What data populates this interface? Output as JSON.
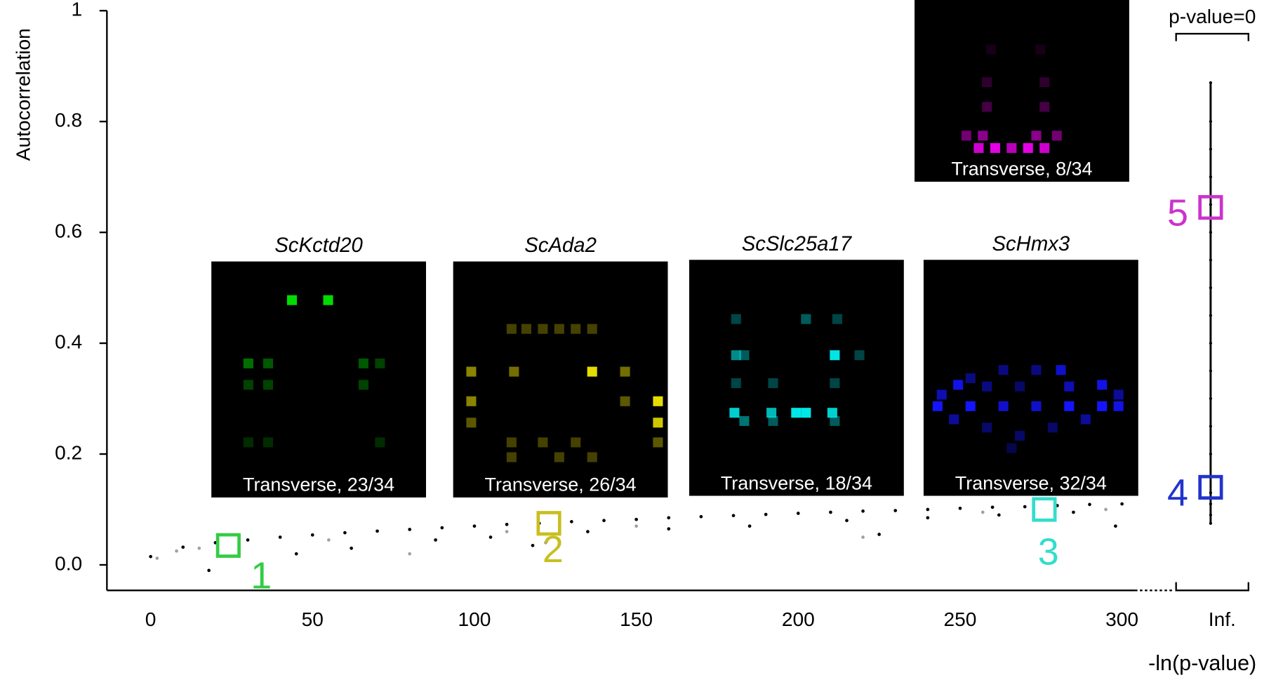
{
  "chart_data": {
    "type": "scatter",
    "y_label": "Autocorrelation",
    "x_label": "-ln(p-value)",
    "xlim": [
      -13.5,
      304
    ],
    "ylim": [
      -0.046,
      1.0
    ],
    "xticks": [
      0,
      50,
      100,
      150,
      200,
      250,
      300
    ],
    "yticks": [
      {
        "value": 0,
        "label": "0.0"
      },
      0.2,
      0.4,
      0.6,
      0.8,
      1
    ],
    "inf_tick_label": "Inf.",
    "inf_bracket_label": "p-value=0",
    "series": [
      {
        "color": "#000000",
        "x": [
          0,
          10,
          20,
          30,
          40,
          50,
          60,
          70,
          80,
          90,
          100,
          110,
          120,
          130,
          140,
          150,
          160,
          170,
          180,
          190,
          200,
          210,
          220,
          230,
          240,
          250,
          260,
          270,
          280,
          290,
          300,
          18,
          45,
          62,
          88,
          105,
          118,
          135,
          160,
          185,
          215,
          240,
          262,
          285,
          298,
          225
        ],
        "y": [
          0.015,
          0.032,
          0.04,
          0.045,
          0.05,
          0.054,
          0.058,
          0.061,
          0.064,
          0.067,
          0.07,
          0.073,
          0.075,
          0.078,
          0.08,
          0.082,
          0.085,
          0.087,
          0.089,
          0.091,
          0.093,
          0.095,
          0.097,
          0.098,
          0.1,
          0.102,
          0.104,
          0.105,
          0.107,
          0.109,
          0.11,
          -0.01,
          0.02,
          0.03,
          0.045,
          0.05,
          0.035,
          0.06,
          0.065,
          0.07,
          0.08,
          0.085,
          0.09,
          0.095,
          0.07,
          0.055
        ]
      },
      {
        "color": "#a0a0a0",
        "x": [
          2,
          8,
          15,
          55,
          80,
          110,
          122,
          150,
          220,
          257,
          295
        ],
        "y": [
          0.012,
          0.025,
          0.03,
          0.045,
          0.02,
          0.06,
          0.04,
          0.07,
          0.05,
          0.095,
          0.1
        ]
      }
    ],
    "inf_series": {
      "color": "#000000",
      "values": [
        0.075,
        0.09,
        0.11,
        0.13,
        0.16,
        0.2,
        0.25,
        0.3,
        0.35,
        0.4,
        0.45,
        0.5,
        0.55,
        0.6,
        0.65,
        0.7,
        0.75,
        0.8,
        0.87
      ]
    },
    "highlights": [
      {
        "label": "1",
        "color": "#33cc44",
        "x": 24,
        "y": 0.035
      },
      {
        "label": "2",
        "color": "#c8bf20",
        "x": 123,
        "y": 0.075
      },
      {
        "label": "3",
        "color": "#33ddcc",
        "x": 276,
        "y": 0.1
      },
      {
        "label": "4",
        "color": "#2233cc",
        "y": 0.14
      },
      {
        "label": "5",
        "color": "#cc33cc",
        "y": 0.645
      }
    ],
    "insets": [
      {
        "title": "ScKctd20",
        "caption": "Transverse, 23/34"
      },
      {
        "title": "ScAda2",
        "caption": "Transverse, 26/34"
      },
      {
        "title": "ScSlc25a17",
        "caption": "Transverse, 18/34"
      },
      {
        "title": "ScHmx3",
        "caption": "Transverse, 32/34"
      },
      {
        "caption": "Transverse, 8/34"
      }
    ]
  }
}
